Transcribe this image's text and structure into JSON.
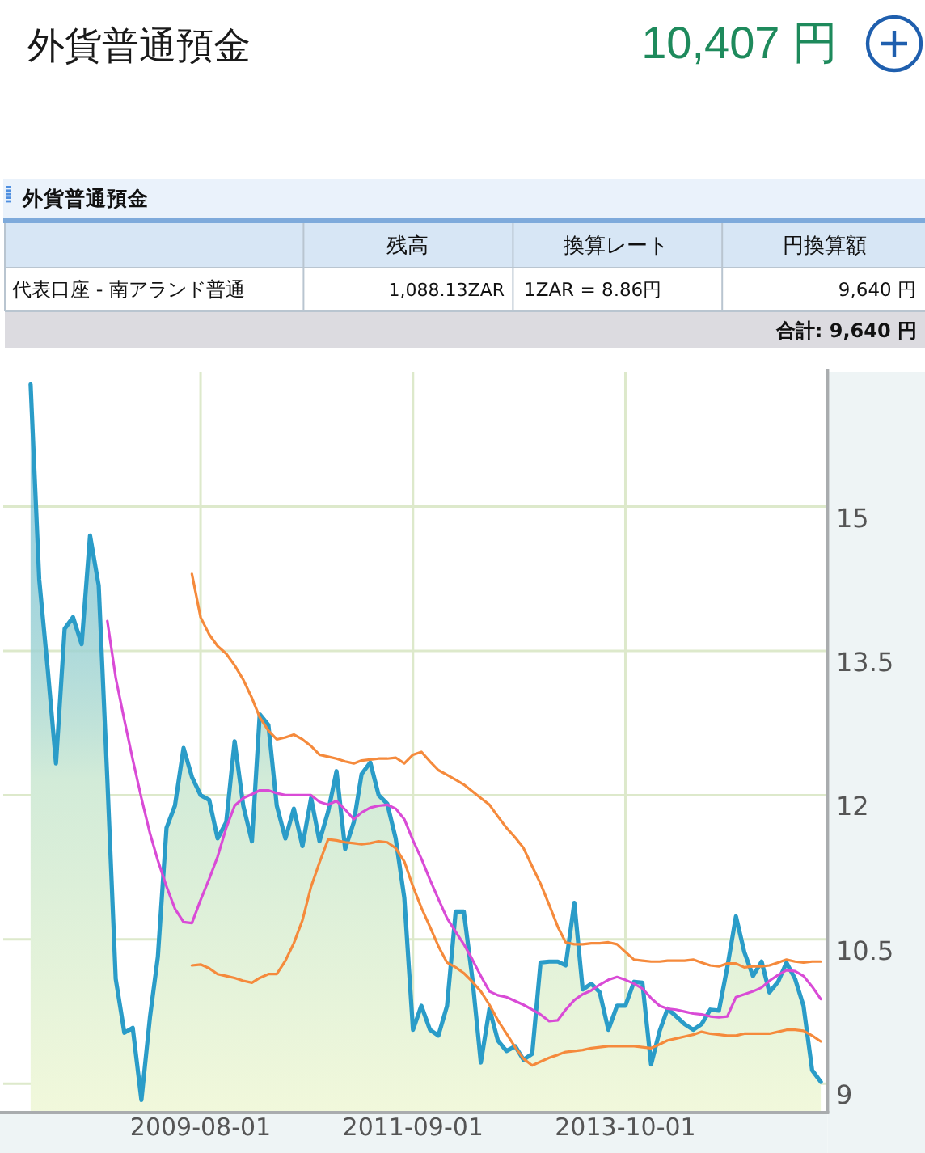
{
  "chart_data": [
    {
      "type": "other",
      "title": "外貨普通預金",
      "annotations": [
        "10,407 円"
      ]
    },
    {
      "type": "other",
      "title": "外貨普通預金",
      "annotations": [
        "残高",
        "換算レート",
        "円換算額",
        "代表口座 - 南アランド普通",
        "1,088.13ZAR",
        "1ZAR = 8.86円",
        "9,640 円",
        "合計: 9,640 円"
      ]
    },
    {
      "type": "line",
      "x": [
        "2007-12",
        "2008-01",
        "2008-02",
        "2008-03",
        "2008-04",
        "2008-05",
        "2008-06",
        "2008-07",
        "2008-08",
        "2008-09",
        "2008-10",
        "2008-11",
        "2008-12",
        "2009-01",
        "2009-02",
        "2009-03",
        "2009-04",
        "2009-05",
        "2009-06",
        "2009-07",
        "2009-08",
        "2009-09",
        "2009-10",
        "2009-11",
        "2009-12",
        "2010-01",
        "2010-02",
        "2010-03",
        "2010-04",
        "2010-05",
        "2010-06",
        "2010-07",
        "2010-08",
        "2010-09",
        "2010-10",
        "2010-11",
        "2010-12",
        "2011-01",
        "2011-02",
        "2011-03",
        "2011-04",
        "2011-05",
        "2011-06",
        "2011-07",
        "2011-08",
        "2011-09",
        "2011-10",
        "2011-11",
        "2011-12",
        "2012-01",
        "2012-02",
        "2012-03",
        "2012-04",
        "2012-05",
        "2012-06",
        "2012-07",
        "2012-08",
        "2012-09",
        "2012-10",
        "2012-11",
        "2012-12",
        "2013-01",
        "2013-02",
        "2013-03",
        "2013-04",
        "2013-05",
        "2013-06",
        "2013-07",
        "2013-08",
        "2013-09",
        "2013-10",
        "2013-11",
        "2013-12",
        "2014-01",
        "2014-02",
        "2014-03",
        "2014-04",
        "2014-05",
        "2014-06",
        "2014-07",
        "2014-08",
        "2014-09",
        "2014-10",
        "2014-11",
        "2014-12",
        "2015-01",
        "2015-02",
        "2015-03",
        "2015-04",
        "2015-05",
        "2015-06",
        "2015-07",
        "2015-08",
        "2015-09"
      ],
      "series": [
        {
          "type": "area",
          "color": "#2a9cc8",
          "values": [
            16.27,
            14.24,
            13.29,
            12.33,
            13.73,
            13.85,
            13.57,
            14.7,
            14.18,
            12.16,
            10.09,
            9.53,
            9.58,
            8.83,
            9.7,
            10.32,
            11.66,
            11.89,
            12.49,
            12.19,
            12.0,
            11.95,
            11.55,
            11.72,
            12.56,
            11.89,
            11.52,
            12.84,
            12.73,
            11.89,
            11.55,
            11.86,
            11.47,
            11.97,
            11.52,
            11.83,
            12.25,
            11.44,
            11.72,
            12.22,
            12.34,
            12.0,
            11.91,
            11.55,
            10.93,
            9.56,
            9.81,
            9.56,
            9.5,
            9.81,
            10.79,
            10.79,
            10.09,
            9.22,
            9.78,
            9.45,
            9.34,
            9.39,
            9.25,
            9.31,
            10.26,
            10.27,
            10.27,
            10.23,
            10.88,
            9.98,
            10.04,
            9.95,
            9.56,
            9.81,
            9.81,
            10.06,
            10.05,
            9.2,
            9.55,
            9.78,
            9.7,
            9.62,
            9.56,
            9.62,
            9.77,
            9.76,
            10.21,
            10.74,
            10.37,
            10.12,
            10.27,
            9.95,
            10.06,
            10.26,
            10.09,
            9.81,
            9.14,
            9.02
          ]
        },
        {
          "color": "#d94bd6",
          "values": [
            null,
            null,
            null,
            null,
            null,
            null,
            null,
            null,
            null,
            13.81,
            13.22,
            12.78,
            12.37,
            11.97,
            11.6,
            11.32,
            11.05,
            10.82,
            10.68,
            10.67,
            10.91,
            11.13,
            11.36,
            11.66,
            11.89,
            11.97,
            12.01,
            12.05,
            12.05,
            12.02,
            12.0,
            12.0,
            12.0,
            12.0,
            11.93,
            11.9,
            11.94,
            11.85,
            11.75,
            11.82,
            11.87,
            11.89,
            11.9,
            11.86,
            11.75,
            11.53,
            11.34,
            11.12,
            10.92,
            10.72,
            10.58,
            10.45,
            10.29,
            10.12,
            9.96,
            9.92,
            9.9,
            9.86,
            9.82,
            9.77,
            9.72,
            9.65,
            9.66,
            9.77,
            9.87,
            9.93,
            9.97,
            10.03,
            10.08,
            10.11,
            10.08,
            10.04,
            9.99,
            9.89,
            9.81,
            9.78,
            9.77,
            9.75,
            9.73,
            9.72,
            9.7,
            9.69,
            9.7,
            9.9,
            9.93,
            9.96,
            10.0,
            10.07,
            10.13,
            10.18,
            10.17,
            10.12,
            10.01,
            9.88
          ]
        },
        {
          "color": "#f58a3c",
          "values": [
            null,
            null,
            null,
            null,
            null,
            null,
            null,
            null,
            null,
            null,
            null,
            null,
            null,
            null,
            null,
            null,
            null,
            null,
            null,
            14.3,
            13.85,
            13.67,
            13.55,
            13.47,
            13.35,
            13.2,
            13.01,
            12.81,
            12.67,
            12.58,
            12.6,
            12.63,
            12.58,
            12.51,
            12.42,
            12.4,
            12.38,
            12.35,
            12.33,
            12.36,
            12.37,
            12.38,
            12.38,
            12.39,
            12.33,
            12.42,
            12.45,
            12.35,
            12.26,
            12.21,
            12.16,
            12.11,
            12.04,
            11.97,
            11.9,
            11.78,
            11.66,
            11.56,
            11.45,
            11.26,
            11.08,
            10.86,
            10.63,
            10.47,
            10.45,
            10.45,
            10.46,
            10.46,
            10.47,
            10.45,
            10.37,
            10.29,
            10.28,
            10.27,
            10.27,
            10.28,
            10.28,
            10.28,
            10.29,
            10.26,
            10.23,
            10.22,
            10.25,
            10.25,
            10.21,
            10.22,
            10.22,
            10.23,
            10.26,
            10.29,
            10.27,
            10.26,
            10.27,
            10.27
          ]
        },
        {
          "color": "#f58a3c",
          "values": [
            null,
            null,
            null,
            null,
            null,
            null,
            null,
            null,
            null,
            null,
            null,
            null,
            null,
            null,
            null,
            null,
            null,
            null,
            null,
            10.23,
            10.24,
            10.2,
            10.14,
            10.12,
            10.1,
            10.07,
            10.05,
            10.1,
            10.14,
            10.14,
            10.28,
            10.46,
            10.7,
            11.05,
            11.3,
            11.54,
            11.53,
            11.51,
            11.5,
            11.49,
            11.5,
            11.52,
            11.51,
            11.45,
            11.31,
            11.05,
            10.83,
            10.63,
            10.43,
            10.26,
            10.21,
            10.15,
            10.06,
            9.96,
            9.82,
            9.66,
            9.52,
            9.38,
            9.26,
            9.19,
            9.23,
            9.27,
            9.3,
            9.33,
            9.34,
            9.35,
            9.37,
            9.38,
            9.39,
            9.39,
            9.39,
            9.39,
            9.38,
            9.37,
            9.41,
            9.45,
            9.47,
            9.49,
            9.51,
            9.54,
            9.52,
            9.51,
            9.5,
            9.5,
            9.52,
            9.52,
            9.52,
            9.52,
            9.54,
            9.56,
            9.56,
            9.55,
            9.5,
            9.44
          ]
        }
      ],
      "xlim": [
        "2007-08-25",
        "2015-09-25"
      ],
      "xticks": [
        "2009-08-01",
        "2011-09-01",
        "2013-10-01"
      ],
      "ylim": [
        8.7,
        16.4
      ],
      "yticks": [
        9,
        10.5,
        12,
        13.5,
        15
      ],
      "grid": true
    }
  ]
}
